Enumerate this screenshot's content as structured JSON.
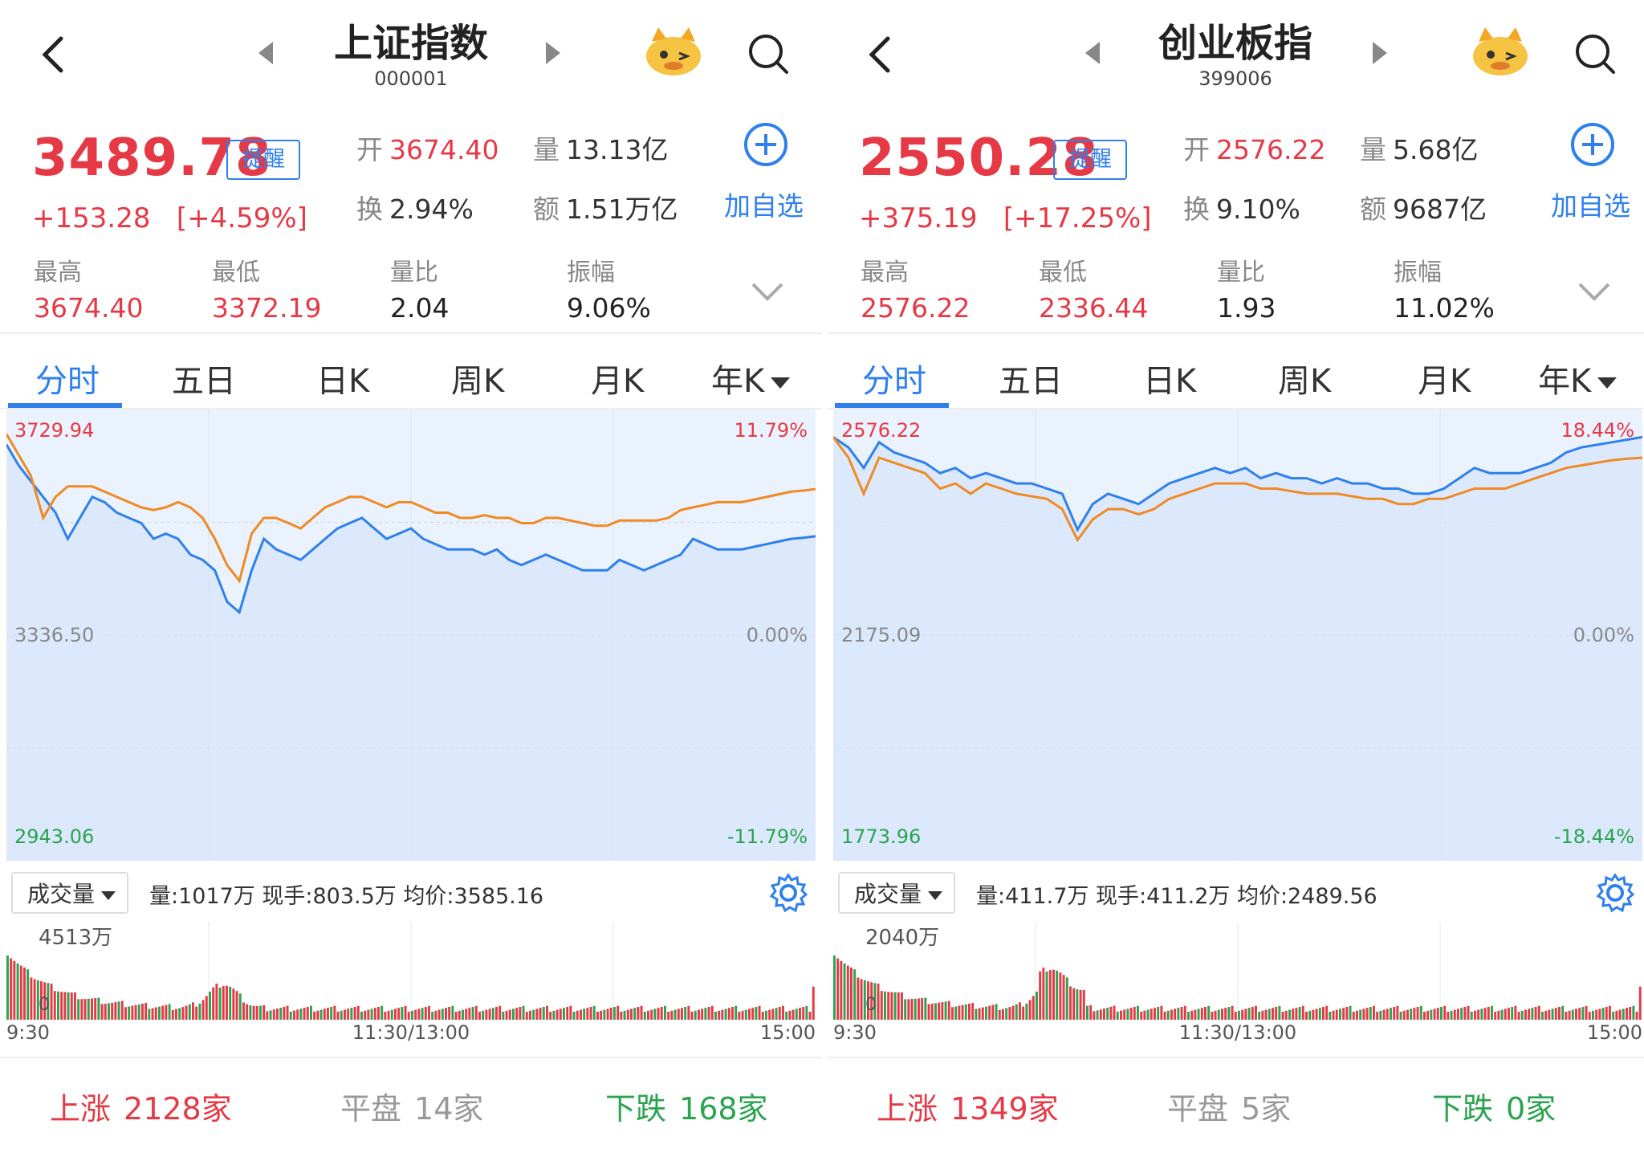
{
  "colors": {
    "up": "#e63946",
    "down": "#2aa44f",
    "accent": "#2f80ed",
    "avg_line": "#f08a24",
    "price_line": "#2f80ed"
  },
  "icons": [
    "back-icon",
    "prev-arrow-icon",
    "next-arrow-icon",
    "mascot-icon",
    "search-icon",
    "add-icon",
    "chevron-down-icon",
    "gear-icon"
  ],
  "panels": [
    {
      "title": "上证指数",
      "code": "000001",
      "price": "3489.78",
      "alert_label": "提醒",
      "change": "+153.28",
      "change_pct": "[+4.59%]",
      "stats": [
        {
          "k": "开",
          "v": "3674.40",
          "red": true
        },
        {
          "k": "量",
          "v": "13.13亿",
          "red": false
        },
        {
          "k": "换",
          "v": "2.94%",
          "red": false
        },
        {
          "k": "额",
          "v": "1.51万亿",
          "red": false
        }
      ],
      "add_label": "加自选",
      "mini": [
        {
          "k": "最高",
          "v": "3674.40",
          "color": "red"
        },
        {
          "k": "最低",
          "v": "3372.19",
          "color": "red"
        },
        {
          "k": "量比",
          "v": "2.04",
          "color": "none"
        },
        {
          "k": "振幅",
          "v": "9.06%",
          "color": "none"
        }
      ],
      "tabs": [
        "分时",
        "五日",
        "日K",
        "周K",
        "月K",
        "年K"
      ],
      "volume": {
        "select_label": "成交量",
        "info": "量:1017万  现手:803.5万  均价:3585.16",
        "max_label": "4513万",
        "zero_label": "0"
      },
      "footer": {
        "up_label": "上涨",
        "up_value": "2128家",
        "flat_label": "平盘",
        "flat_value": "14家",
        "down_label": "下跌",
        "down_value": "168家"
      }
    },
    {
      "title": "创业板指",
      "code": "399006",
      "price": "2550.28",
      "alert_label": "提醒",
      "change": "+375.19",
      "change_pct": "[+17.25%]",
      "stats": [
        {
          "k": "开",
          "v": "2576.22",
          "red": true
        },
        {
          "k": "量",
          "v": "5.68亿",
          "red": false
        },
        {
          "k": "换",
          "v": "9.10%",
          "red": false
        },
        {
          "k": "额",
          "v": "9687亿",
          "red": false
        }
      ],
      "add_label": "加自选",
      "mini": [
        {
          "k": "最高",
          "v": "2576.22",
          "color": "red"
        },
        {
          "k": "最低",
          "v": "2336.44",
          "color": "red"
        },
        {
          "k": "量比",
          "v": "1.93",
          "color": "none"
        },
        {
          "k": "振幅",
          "v": "11.02%",
          "color": "none"
        }
      ],
      "tabs": [
        "分时",
        "五日",
        "日K",
        "周K",
        "月K",
        "年K"
      ],
      "volume": {
        "select_label": "成交量",
        "info": "量:411.7万  现手:411.2万  均价:2489.56",
        "max_label": "2040万",
        "zero_label": "0"
      },
      "footer": {
        "up_label": "上涨",
        "up_value": "1349家",
        "flat_label": "平盘",
        "flat_value": "5家",
        "down_label": "下跌",
        "down_value": "0家"
      }
    }
  ],
  "chart_data": [
    {
      "type": "line",
      "x_labels": [
        "9:30",
        "11:30/13:00",
        "15:00"
      ],
      "y_range": [
        2943.06,
        3729.94
      ],
      "y_labels": {
        "top": "3729.94",
        "mid": "3336.50",
        "bottom": "2943.06"
      },
      "pct_labels": {
        "top": "11.79%",
        "mid": "0.00%",
        "bottom": "-11.79%"
      },
      "series": [
        {
          "values": [
            3700,
            3660,
            3630,
            3600,
            3570,
            3520,
            3560,
            3600,
            3590,
            3570,
            3560,
            3550,
            3520,
            3530,
            3520,
            3490,
            3480,
            3460,
            3400,
            3380,
            3460,
            3520,
            3500,
            3490,
            3480,
            3500,
            3520,
            3540,
            3550,
            3560,
            3540,
            3520,
            3530,
            3540,
            3520,
            3510,
            3500,
            3500,
            3500,
            3490,
            3500,
            3480,
            3470,
            3480,
            3490,
            3480,
            3470,
            3460,
            3460,
            3460,
            3480,
            3470,
            3460,
            3470,
            3480,
            3490,
            3520,
            3510,
            3500,
            3500,
            3500,
            3505,
            3510,
            3515,
            3520,
            3522,
            3525
          ]
        },
        {
          "values": [
            3720,
            3680,
            3640,
            3560,
            3600,
            3620,
            3620,
            3620,
            3610,
            3600,
            3590,
            3580,
            3575,
            3580,
            3590,
            3580,
            3560,
            3520,
            3470,
            3440,
            3530,
            3560,
            3560,
            3550,
            3540,
            3560,
            3580,
            3590,
            3600,
            3600,
            3590,
            3580,
            3590,
            3590,
            3580,
            3570,
            3570,
            3560,
            3560,
            3565,
            3560,
            3560,
            3550,
            3550,
            3560,
            3560,
            3555,
            3550,
            3545,
            3545,
            3555,
            3555,
            3555,
            3555,
            3560,
            3575,
            3580,
            3585,
            3590,
            3590,
            3590,
            3595,
            3600,
            3605,
            3610,
            3612,
            3615
          ]
        }
      ]
    },
    {
      "type": "line",
      "x_labels": [
        "9:30",
        "11:30/13:00",
        "15:00"
      ],
      "y_range": [
        1773.96,
        2576.22
      ],
      "y_labels": {
        "top": "2576.22",
        "mid": "2175.09",
        "bottom": "1773.96"
      },
      "pct_labels": {
        "top": "18.44%",
        "mid": "0.00%",
        "bottom": "-18.44%"
      },
      "series": [
        {
          "values": [
            2560,
            2540,
            2500,
            2550,
            2530,
            2520,
            2510,
            2490,
            2500,
            2480,
            2490,
            2480,
            2470,
            2470,
            2460,
            2450,
            2380,
            2430,
            2450,
            2440,
            2430,
            2450,
            2470,
            2480,
            2490,
            2500,
            2490,
            2500,
            2480,
            2490,
            2480,
            2480,
            2470,
            2480,
            2470,
            2470,
            2460,
            2460,
            2450,
            2450,
            2460,
            2480,
            2500,
            2490,
            2490,
            2490,
            2500,
            2510,
            2530,
            2540,
            2545,
            2550,
            2555,
            2560
          ]
        },
        {
          "values": [
            2560,
            2520,
            2450,
            2520,
            2510,
            2500,
            2490,
            2460,
            2470,
            2450,
            2470,
            2460,
            2450,
            2445,
            2440,
            2420,
            2360,
            2400,
            2420,
            2420,
            2410,
            2420,
            2440,
            2450,
            2460,
            2470,
            2470,
            2470,
            2460,
            2460,
            2455,
            2450,
            2450,
            2450,
            2445,
            2440,
            2440,
            2430,
            2430,
            2440,
            2440,
            2450,
            2460,
            2460,
            2460,
            2470,
            2480,
            2490,
            2500,
            2505,
            2510,
            2515,
            2518,
            2520
          ]
        }
      ]
    }
  ]
}
